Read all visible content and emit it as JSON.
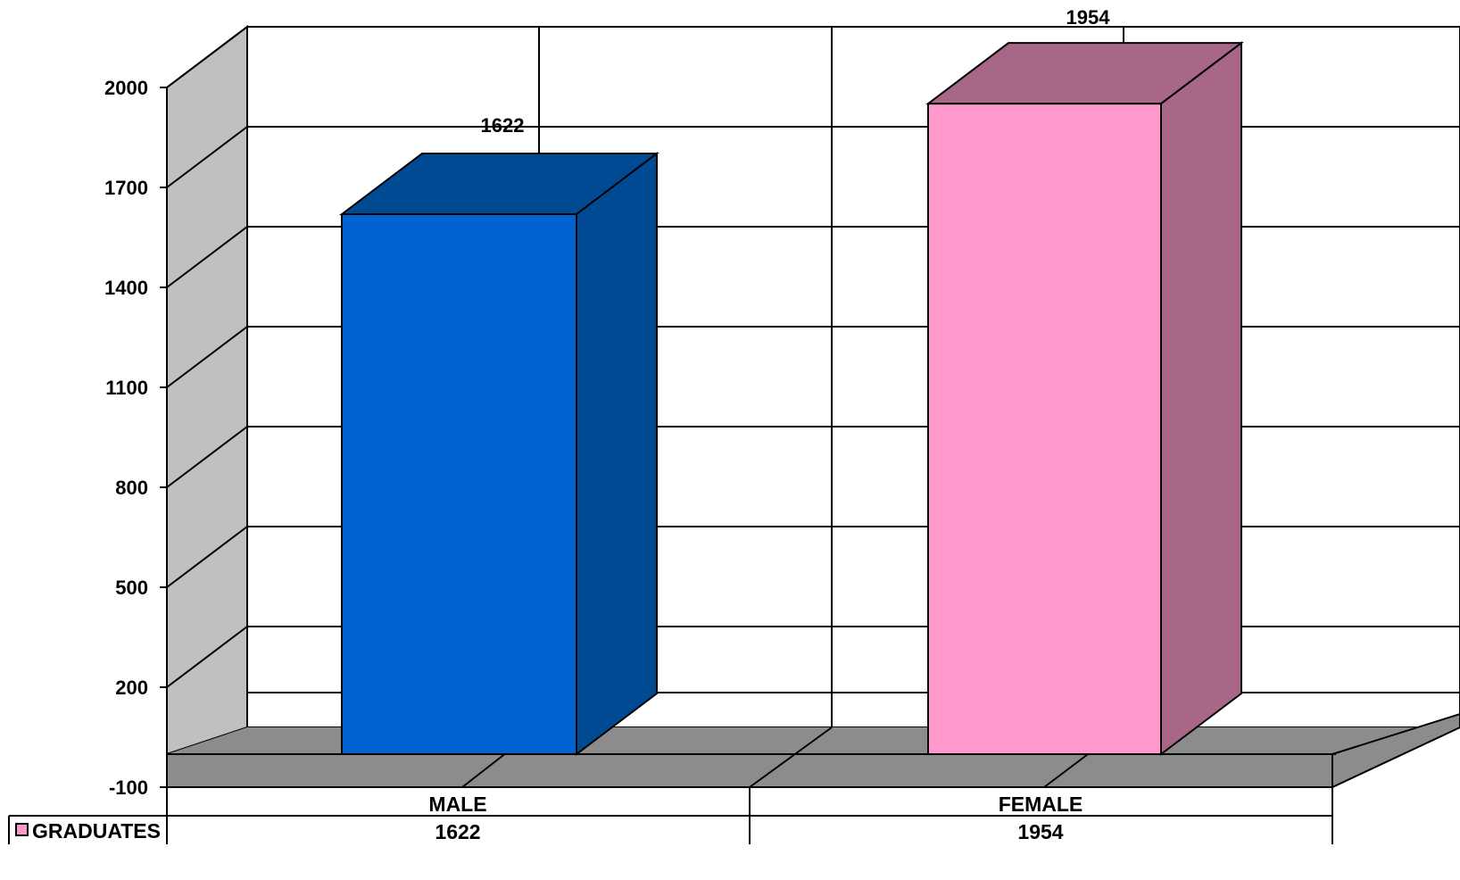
{
  "chart_data": {
    "type": "bar",
    "categories": [
      "MALE",
      "FEMALE"
    ],
    "series": [
      {
        "name": "GRADUATES",
        "values": [
          1622,
          1954
        ]
      }
    ],
    "yticks": [
      2000,
      1700,
      1400,
      1100,
      800,
      500,
      200,
      -100
    ],
    "ylim": [
      -100,
      2000
    ],
    "data_labels": [
      "1622",
      "1954"
    ],
    "data_table": {
      "legend_label": "GRADUATES",
      "header": [
        "MALE",
        "FEMALE"
      ],
      "row": [
        "1622",
        "1954"
      ]
    },
    "three_d": true,
    "grid": true,
    "legend": "data table (bottom-left)"
  },
  "colors": {
    "male_front": "#0063cf",
    "male_side": "#004a93",
    "female_front": "#ff99cc",
    "female_side": "#a96788",
    "wall": "#c0c0c0",
    "floor": "#8c8c8c",
    "plot_bg": "#ffffff",
    "legend_key": "#ff99cc"
  }
}
